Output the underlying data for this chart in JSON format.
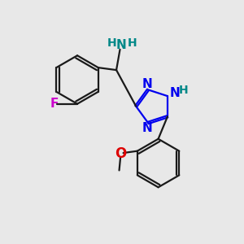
{
  "background_color": "#e8e8e8",
  "bond_color": "#1a1a1a",
  "N_color": "#0000ee",
  "O_color": "#dd0000",
  "F_color": "#cc00cc",
  "NH2_color": "#008888",
  "bond_width": 1.6,
  "dpi": 100,
  "figsize": [
    3.0,
    3.0
  ],
  "xlim": [
    0,
    10
  ],
  "ylim": [
    0,
    10
  ]
}
